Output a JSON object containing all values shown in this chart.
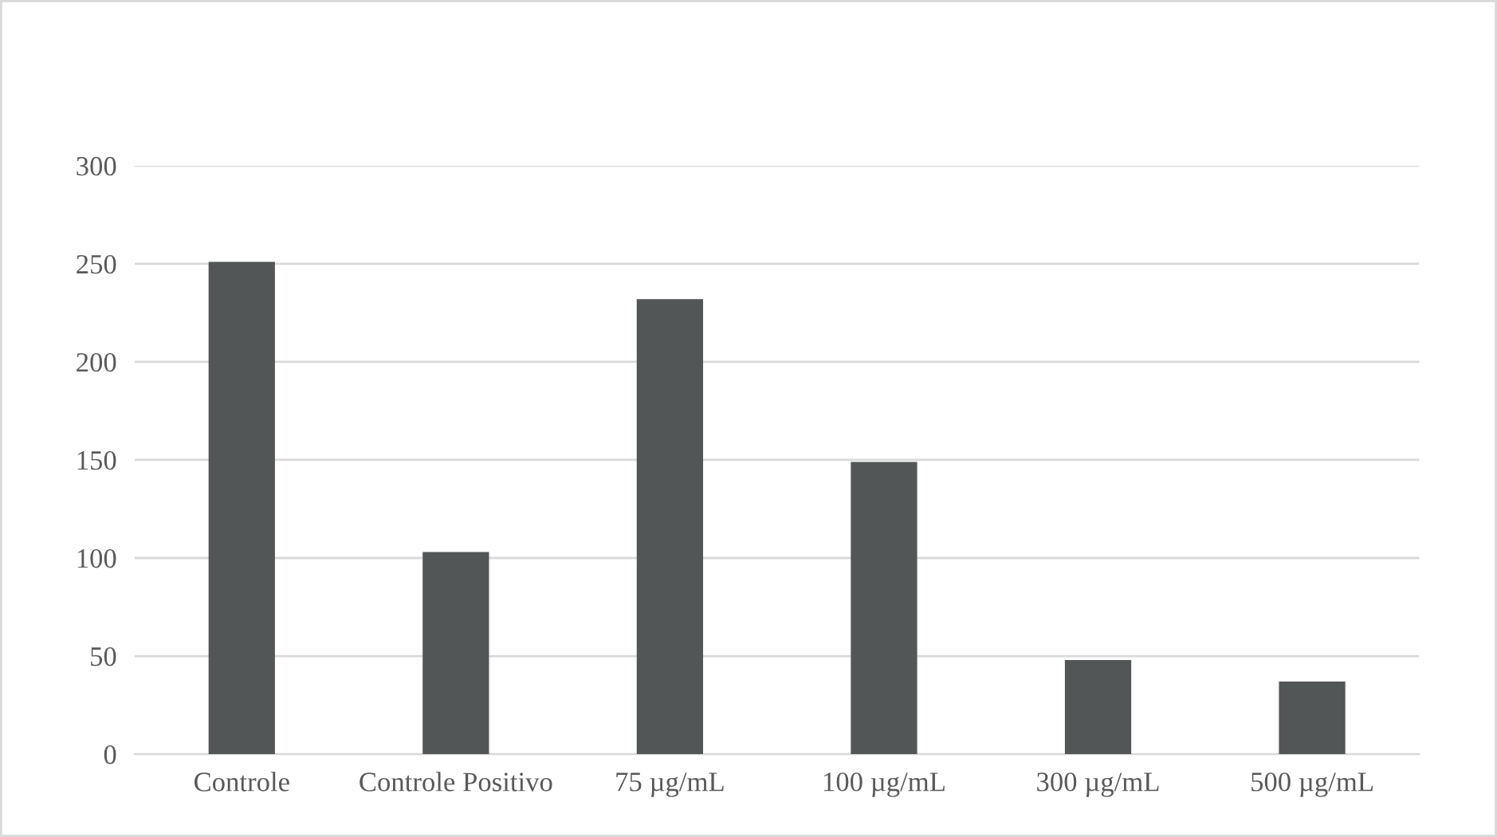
{
  "chart_data": {
    "type": "bar",
    "categories": [
      "Controle",
      "Controle Positivo",
      "75 µg/mL",
      "100 µg/mL",
      "300 µg/mL",
      "500 µg/mL"
    ],
    "values": [
      251,
      103,
      232,
      149,
      48,
      37
    ],
    "color": "#535656",
    "ylim": [
      0,
      300
    ],
    "yticks": [
      0,
      50,
      100,
      150,
      200,
      250,
      300
    ],
    "grid": "y",
    "legend": false
  }
}
